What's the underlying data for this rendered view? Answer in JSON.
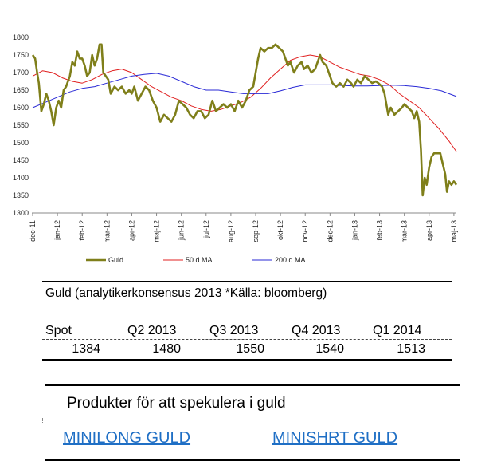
{
  "chart_data": {
    "type": "line",
    "ylim": [
      1300,
      1800
    ],
    "yticks": [
      1300,
      1350,
      1400,
      1450,
      1500,
      1550,
      1600,
      1650,
      1700,
      1750,
      1800
    ],
    "xticks": [
      "dec-11",
      "jan-12",
      "feb-12",
      "mar-12",
      "apr-12",
      "maj-12",
      "jun-12",
      "jul-12",
      "aug-12",
      "sep-12",
      "okt-12",
      "nov-12",
      "dec-12",
      "jan-13",
      "feb-13",
      "mar-13",
      "apr-13",
      "maj-13"
    ],
    "grid": false,
    "legend_position": "bottom",
    "series": [
      {
        "name": "Guld",
        "color": "#7f7f1a",
        "points": [
          [
            0,
            1750
          ],
          [
            0.1,
            1740
          ],
          [
            0.18,
            1700
          ],
          [
            0.25,
            1670
          ],
          [
            0.35,
            1590
          ],
          [
            0.45,
            1610
          ],
          [
            0.55,
            1640
          ],
          [
            0.65,
            1620
          ],
          [
            0.75,
            1590
          ],
          [
            0.85,
            1550
          ],
          [
            0.95,
            1600
          ],
          [
            1.05,
            1620
          ],
          [
            1.15,
            1600
          ],
          [
            1.25,
            1650
          ],
          [
            1.35,
            1660
          ],
          [
            1.5,
            1690
          ],
          [
            1.6,
            1730
          ],
          [
            1.7,
            1720
          ],
          [
            1.8,
            1760
          ],
          [
            1.9,
            1740
          ],
          [
            2.0,
            1740
          ],
          [
            2.1,
            1720
          ],
          [
            2.2,
            1690
          ],
          [
            2.3,
            1700
          ],
          [
            2.4,
            1750
          ],
          [
            2.5,
            1720
          ],
          [
            2.6,
            1740
          ],
          [
            2.7,
            1780
          ],
          [
            2.78,
            1780
          ],
          [
            2.85,
            1700
          ],
          [
            2.95,
            1690
          ],
          [
            3.05,
            1680
          ],
          [
            3.15,
            1640
          ],
          [
            3.3,
            1660
          ],
          [
            3.45,
            1650
          ],
          [
            3.6,
            1660
          ],
          [
            3.75,
            1640
          ],
          [
            3.9,
            1650
          ],
          [
            4.0,
            1640
          ],
          [
            4.1,
            1660
          ],
          [
            4.25,
            1620
          ],
          [
            4.4,
            1640
          ],
          [
            4.55,
            1660
          ],
          [
            4.7,
            1650
          ],
          [
            4.85,
            1620
          ],
          [
            5.0,
            1600
          ],
          [
            5.15,
            1560
          ],
          [
            5.3,
            1580
          ],
          [
            5.45,
            1570
          ],
          [
            5.6,
            1560
          ],
          [
            5.75,
            1580
          ],
          [
            5.9,
            1620
          ],
          [
            6.05,
            1610
          ],
          [
            6.2,
            1600
          ],
          [
            6.35,
            1580
          ],
          [
            6.5,
            1570
          ],
          [
            6.65,
            1590
          ],
          [
            6.8,
            1590
          ],
          [
            6.95,
            1570
          ],
          [
            7.1,
            1580
          ],
          [
            7.25,
            1620
          ],
          [
            7.4,
            1590
          ],
          [
            7.55,
            1600
          ],
          [
            7.7,
            1610
          ],
          [
            7.85,
            1600
          ],
          [
            8.0,
            1610
          ],
          [
            8.15,
            1590
          ],
          [
            8.3,
            1620
          ],
          [
            8.45,
            1600
          ],
          [
            8.6,
            1620
          ],
          [
            8.75,
            1650
          ],
          [
            8.9,
            1660
          ],
          [
            9.0,
            1700
          ],
          [
            9.1,
            1740
          ],
          [
            9.2,
            1770
          ],
          [
            9.35,
            1760
          ],
          [
            9.5,
            1770
          ],
          [
            9.65,
            1770
          ],
          [
            9.8,
            1780
          ],
          [
            9.95,
            1770
          ],
          [
            10.1,
            1760
          ],
          [
            10.2,
            1740
          ],
          [
            10.3,
            1720
          ],
          [
            10.4,
            1730
          ],
          [
            10.55,
            1700
          ],
          [
            10.7,
            1720
          ],
          [
            10.85,
            1730
          ],
          [
            10.95,
            1710
          ],
          [
            11.1,
            1720
          ],
          [
            11.25,
            1700
          ],
          [
            11.4,
            1710
          ],
          [
            11.5,
            1730
          ],
          [
            11.6,
            1750
          ],
          [
            11.7,
            1730
          ],
          [
            11.85,
            1720
          ],
          [
            11.95,
            1700
          ],
          [
            12.1,
            1670
          ],
          [
            12.25,
            1660
          ],
          [
            12.4,
            1670
          ],
          [
            12.55,
            1660
          ],
          [
            12.7,
            1680
          ],
          [
            12.85,
            1670
          ],
          [
            12.95,
            1660
          ],
          [
            13.1,
            1680
          ],
          [
            13.25,
            1670
          ],
          [
            13.4,
            1690
          ],
          [
            13.55,
            1680
          ],
          [
            13.7,
            1670
          ],
          [
            13.85,
            1675
          ],
          [
            13.95,
            1670
          ],
          [
            14.1,
            1660
          ],
          [
            14.2,
            1640
          ],
          [
            14.35,
            1580
          ],
          [
            14.45,
            1600
          ],
          [
            14.6,
            1580
          ],
          [
            14.75,
            1590
          ],
          [
            14.9,
            1600
          ],
          [
            15.0,
            1610
          ],
          [
            15.15,
            1600
          ],
          [
            15.3,
            1590
          ],
          [
            15.4,
            1570
          ],
          [
            15.5,
            1590
          ],
          [
            15.6,
            1560
          ],
          [
            15.67,
            1480
          ],
          [
            15.74,
            1350
          ],
          [
            15.82,
            1400
          ],
          [
            15.9,
            1380
          ],
          [
            16.0,
            1430
          ],
          [
            16.1,
            1460
          ],
          [
            16.2,
            1470
          ],
          [
            16.35,
            1470
          ],
          [
            16.45,
            1470
          ],
          [
            16.55,
            1440
          ],
          [
            16.65,
            1410
          ],
          [
            16.72,
            1360
          ],
          [
            16.8,
            1390
          ],
          [
            16.9,
            1380
          ],
          [
            17.0,
            1390
          ],
          [
            17.1,
            1380
          ]
        ]
      },
      {
        "name": "50 d MA",
        "color": "#e02020",
        "points": [
          [
            0,
            1690
          ],
          [
            0.4,
            1705
          ],
          [
            0.8,
            1700
          ],
          [
            1.2,
            1685
          ],
          [
            1.6,
            1675
          ],
          [
            2.0,
            1670
          ],
          [
            2.4,
            1680
          ],
          [
            2.8,
            1695
          ],
          [
            3.2,
            1705
          ],
          [
            3.6,
            1710
          ],
          [
            4.0,
            1700
          ],
          [
            4.4,
            1680
          ],
          [
            4.8,
            1660
          ],
          [
            5.2,
            1645
          ],
          [
            5.6,
            1630
          ],
          [
            6.0,
            1620
          ],
          [
            6.4,
            1605
          ],
          [
            6.8,
            1595
          ],
          [
            7.2,
            1590
          ],
          [
            7.6,
            1595
          ],
          [
            8.0,
            1605
          ],
          [
            8.4,
            1615
          ],
          [
            8.8,
            1630
          ],
          [
            9.2,
            1655
          ],
          [
            9.6,
            1685
          ],
          [
            10.0,
            1710
          ],
          [
            10.4,
            1735
          ],
          [
            10.8,
            1745
          ],
          [
            11.2,
            1750
          ],
          [
            11.6,
            1745
          ],
          [
            12.0,
            1730
          ],
          [
            12.4,
            1715
          ],
          [
            12.8,
            1705
          ],
          [
            13.2,
            1695
          ],
          [
            13.6,
            1690
          ],
          [
            14.0,
            1680
          ],
          [
            14.4,
            1665
          ],
          [
            14.8,
            1640
          ],
          [
            15.2,
            1620
          ],
          [
            15.6,
            1600
          ],
          [
            16.0,
            1570
          ],
          [
            16.4,
            1540
          ],
          [
            16.8,
            1505
          ],
          [
            17.1,
            1475
          ]
        ]
      },
      {
        "name": "200 d MA",
        "color": "#2a2ad6",
        "points": [
          [
            0,
            1600
          ],
          [
            0.5,
            1615
          ],
          [
            1.0,
            1630
          ],
          [
            1.5,
            1645
          ],
          [
            2.0,
            1655
          ],
          [
            2.5,
            1660
          ],
          [
            3.0,
            1670
          ],
          [
            3.5,
            1680
          ],
          [
            4.0,
            1690
          ],
          [
            4.5,
            1695
          ],
          [
            5.0,
            1698
          ],
          [
            5.5,
            1690
          ],
          [
            6.0,
            1675
          ],
          [
            6.5,
            1660
          ],
          [
            7.0,
            1650
          ],
          [
            7.5,
            1650
          ],
          [
            8.0,
            1645
          ],
          [
            8.5,
            1640
          ],
          [
            9.0,
            1640
          ],
          [
            9.5,
            1640
          ],
          [
            10.0,
            1648
          ],
          [
            10.5,
            1658
          ],
          [
            11.0,
            1665
          ],
          [
            11.5,
            1665
          ],
          [
            12.0,
            1665
          ],
          [
            12.5,
            1663
          ],
          [
            13.0,
            1662
          ],
          [
            13.5,
            1662
          ],
          [
            14.0,
            1663
          ],
          [
            14.5,
            1664
          ],
          [
            15.0,
            1663
          ],
          [
            15.5,
            1660
          ],
          [
            16.0,
            1655
          ],
          [
            16.5,
            1648
          ],
          [
            17.1,
            1632
          ]
        ]
      }
    ]
  },
  "consensus": {
    "title": "Guld (analytikerkonsensus 2013 *Källa: bloomberg)",
    "headers": [
      "Spot",
      "Q2 2013",
      "Q3 2013",
      "Q4 2013",
      "Q1 2014"
    ],
    "values": [
      "1384",
      "1480",
      "1550",
      "1540",
      "1513"
    ]
  },
  "products": {
    "title": "Produkter för att spekulera i guld",
    "links": [
      "MINILONG GULD",
      "MINISHRT GULD"
    ]
  }
}
